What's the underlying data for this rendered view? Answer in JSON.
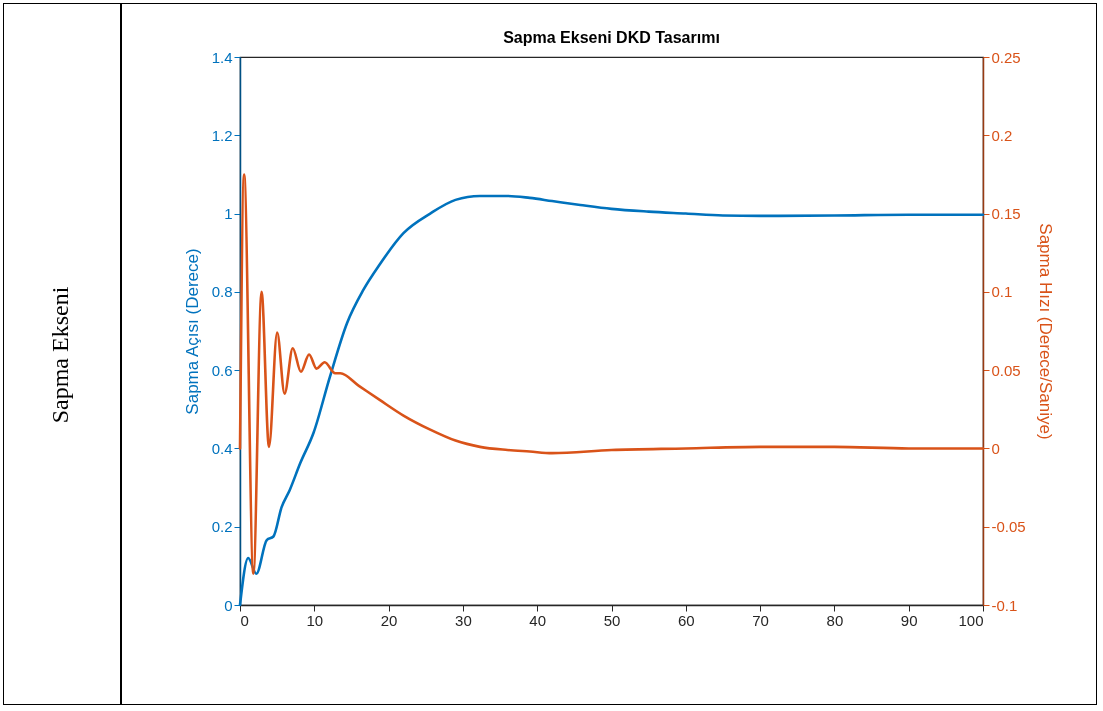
{
  "chart_data": {
    "type": "line",
    "title": "Sapma Ekseni DKD Tasarımı",
    "ylabel": "Sapma Açısı (Derece)",
    "y2label": "Sapma Hızı (Derece/Saniye)",
    "annotations": [
      "Sapma Ekseni"
    ],
    "xlim": [
      0,
      100
    ],
    "xticks": [
      0,
      10,
      20,
      30,
      40,
      50,
      60,
      70,
      80,
      90,
      100
    ],
    "ylim": [
      0,
      1.4
    ],
    "yticks": [
      0,
      0.2,
      0.4,
      0.6,
      0.8,
      1,
      1.2,
      1.4
    ],
    "y2lim": [
      -0.1,
      0.25
    ],
    "y2ticks": [
      -0.1,
      -0.05,
      0,
      0.05,
      0.1,
      0.15,
      0.2,
      0.25
    ],
    "grid": false,
    "marker": "none",
    "line_style": "solid",
    "series": [
      {
        "color": "#0072bd",
        "x": [
          0,
          1.1,
          2.2,
          3.6,
          4.5,
          5.6,
          6.7,
          8.1,
          9.9,
          12.1,
          14.4,
          16.6,
          18.8,
          22,
          25.6,
          29,
          32.3,
          36,
          39,
          42,
          45.8,
          50,
          55,
          60,
          65,
          70,
          80,
          90,
          100
        ],
        "values": [
          0,
          0.12,
          0.08,
          0.166,
          0.175,
          0.25,
          0.294,
          0.362,
          0.44,
          0.583,
          0.72,
          0.805,
          0.87,
          0.95,
          1,
          1.035,
          1.045,
          1.045,
          1.04,
          1.032,
          1.022,
          1.012,
          1.005,
          1,
          0.995,
          0.994,
          0.995,
          0.997,
          0.997
        ]
      },
      {
        "color": "#d95319",
        "axis": "y2",
        "x": [
          0,
          0.55,
          1.8,
          2.9,
          3.9,
          5,
          6,
          7.1,
          8.2,
          9.3,
          10.3,
          11.4,
          12.8,
          13.5,
          16,
          18.8,
          22,
          25.6,
          29,
          32.3,
          36,
          39,
          42,
          50,
          60,
          70,
          80,
          90,
          100
        ],
        "values": [
          0,
          0.175,
          -0.08,
          0.1,
          0.001,
          0.074,
          0.035,
          0.064,
          0.049,
          0.06,
          0.051,
          0.055,
          0.048,
          0.048,
          0.04,
          0.031,
          0.021,
          0.012,
          0.005,
          0.001,
          -0.001,
          -0.002,
          -0.003,
          -0.001,
          0,
          0.001,
          0.001,
          0,
          0
        ]
      }
    ]
  }
}
